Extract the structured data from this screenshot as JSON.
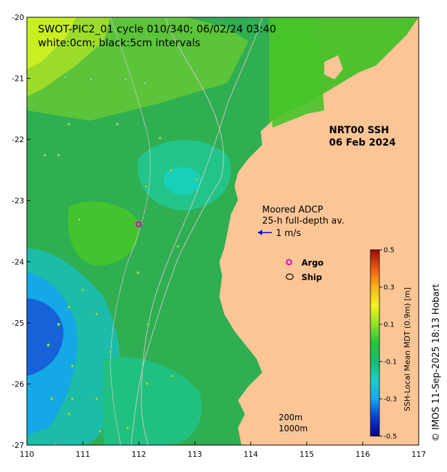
{
  "title_line1": "SWOT-PIC2_01 cycle 010/340; 06/02/24 03:40",
  "title_line2": "white:0cm; black:5cm intervals",
  "product_label_line1": "NRT00 SSH",
  "product_label_line2": "06 Feb 2024",
  "adcp_line1": "Moored ADCP",
  "adcp_line2": "25-h full-depth av.",
  "adcp_scale": "1 m/s",
  "legend": {
    "argo": "Argo",
    "ship": "Ship"
  },
  "depth_contours": {
    "shallow": "200m",
    "deep": "1000m"
  },
  "colorbar": {
    "title": "SSH-Local Mean MDT (0.9m) [m]",
    "ticks": [
      "0.5",
      "0.3",
      "0.1",
      "-0.1",
      "-0.3",
      "-0.5"
    ],
    "min": -0.5,
    "max": 0.5
  },
  "credit": "© IMOS 11-Sep-2025 18:13 Hobart",
  "axes": {
    "x_ticks": [
      "110",
      "111",
      "112",
      "113",
      "114",
      "115",
      "116",
      "117"
    ],
    "y_ticks": [
      "-20",
      "-21",
      "-22",
      "-23",
      "-24",
      "-25",
      "-26",
      "-27"
    ]
  },
  "colors": {
    "land": "#fbc596",
    "ocean_mid": "#30ad4f",
    "ocean_high": "#c8f21c",
    "ocean_low": "#1468d8",
    "contour_depth": "#c8c8c8",
    "argo_marker": "#e100c8"
  }
}
